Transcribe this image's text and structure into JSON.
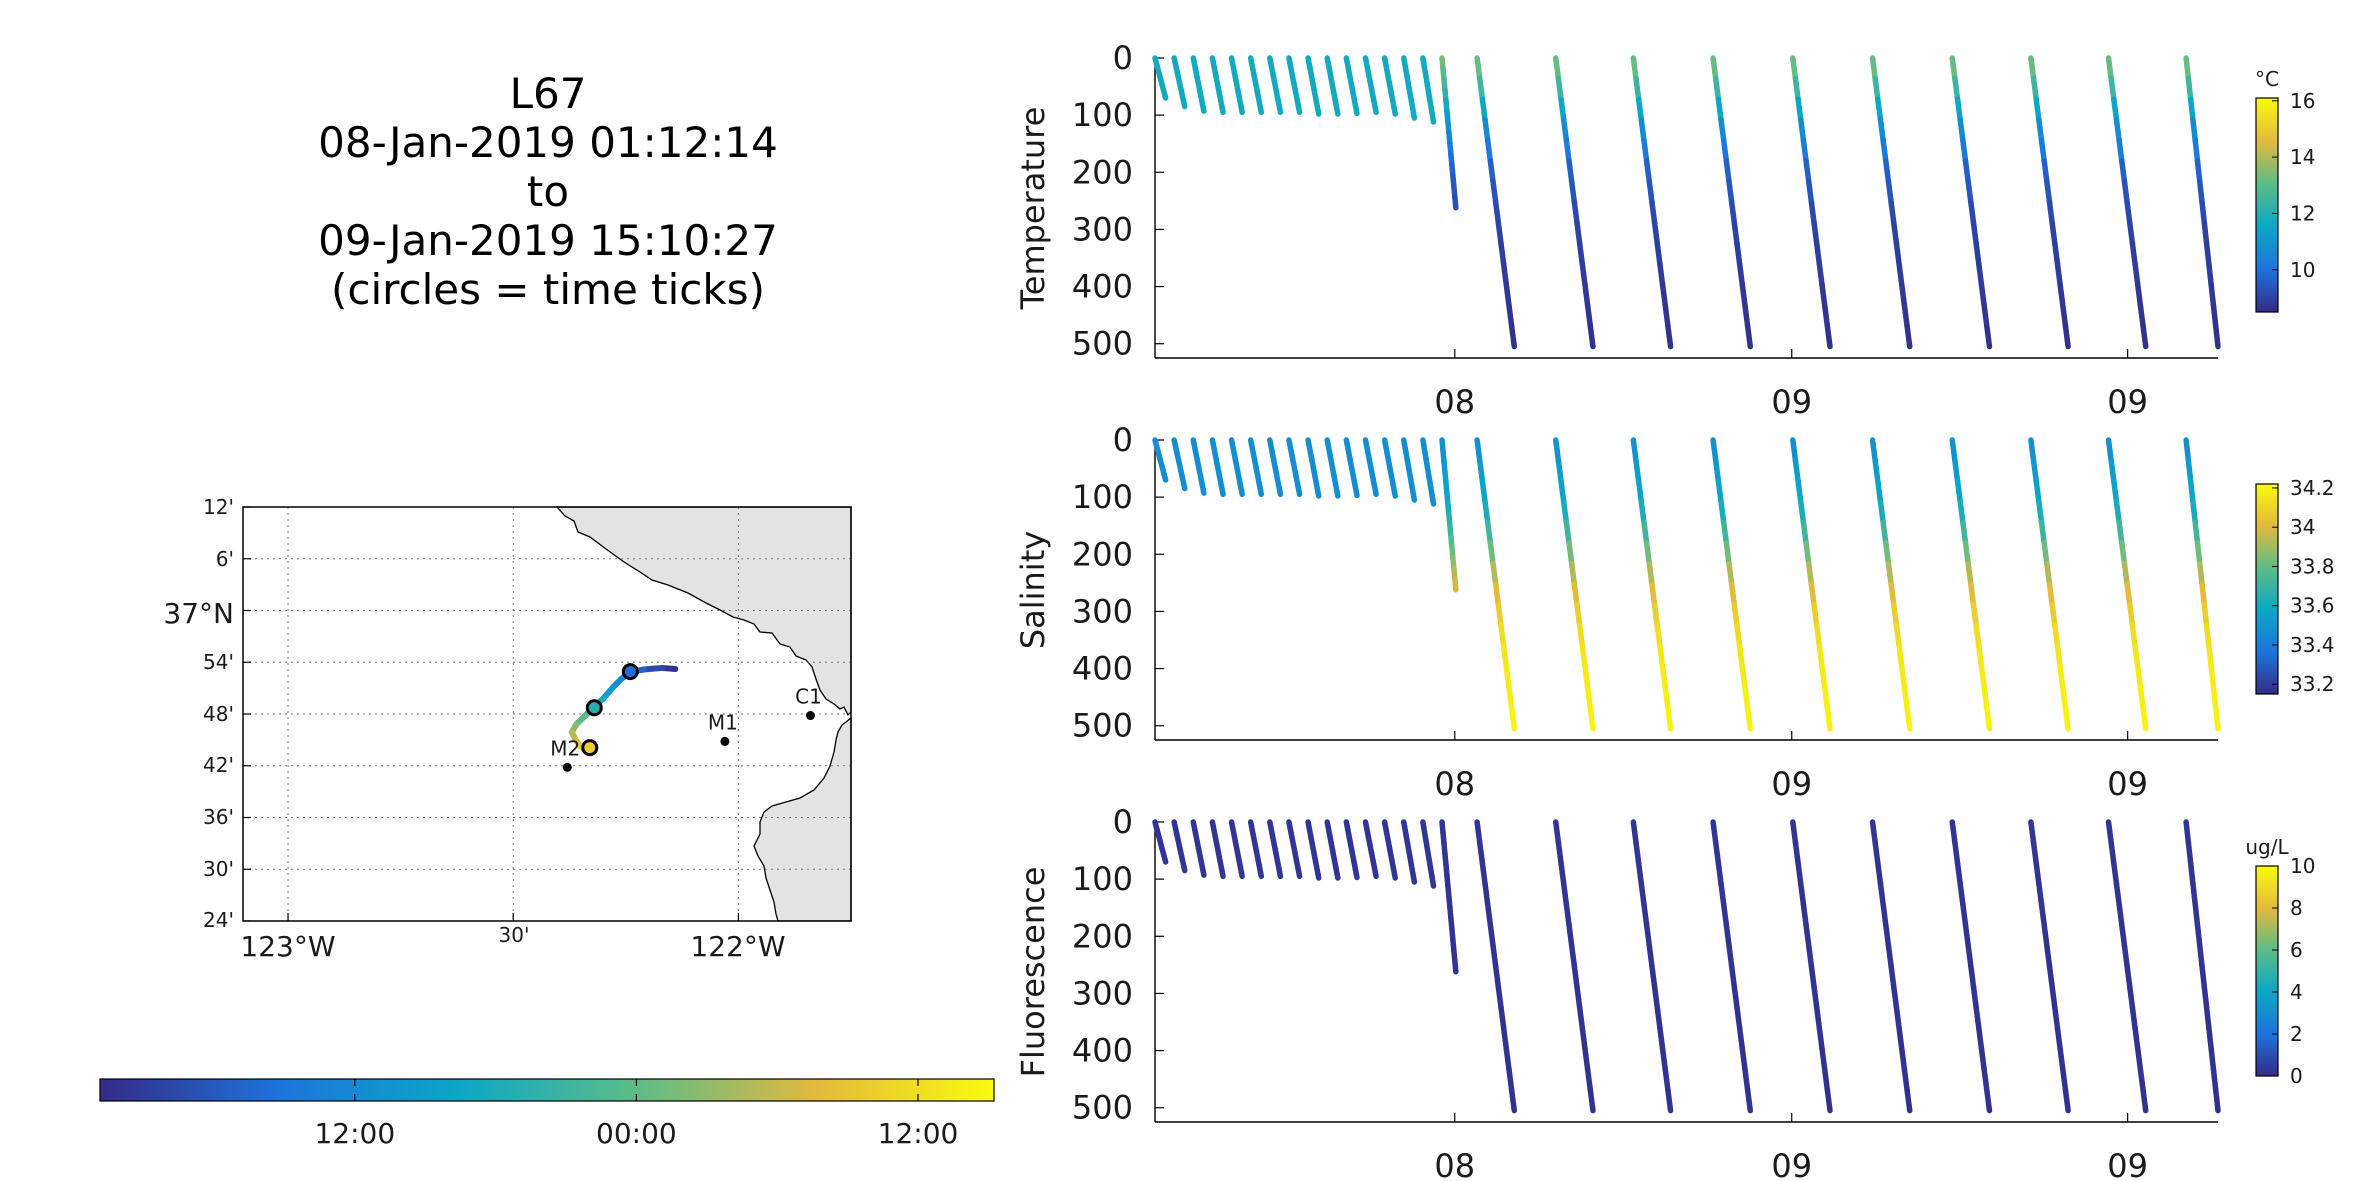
{
  "title": {
    "lines": [
      "L67",
      "08-Jan-2019 01:12:14",
      "to",
      "09-Jan-2019 15:10:27",
      "(circles = time ticks)"
    ]
  },
  "map": {
    "lat_labels": [
      "12'",
      "6'",
      "37°N",
      "54'",
      "48'",
      "42'",
      "36'",
      "30'",
      "24'"
    ],
    "lat_values": [
      37.2,
      37.1,
      37.0,
      36.9,
      36.8,
      36.7,
      36.6,
      36.5,
      36.4
    ],
    "lon_labels": [
      "123°W",
      "30'",
      "122°W"
    ],
    "lon_values": [
      -123.0,
      -122.5,
      -122.0
    ],
    "lon_range": [
      -123.1,
      -121.75
    ],
    "lat_range": [
      36.4,
      37.2
    ],
    "stations": [
      {
        "name": "C1",
        "lon": -121.84,
        "lat": 36.797
      },
      {
        "name": "M1",
        "lon": -122.03,
        "lat": 36.747
      },
      {
        "name": "M2",
        "lon": -122.38,
        "lat": 36.697
      }
    ],
    "track": [
      {
        "lon": -122.14,
        "lat": 36.887,
        "t": 0.0
      },
      {
        "lon": -122.17,
        "lat": 36.889,
        "t": 0.05
      },
      {
        "lon": -122.21,
        "lat": 36.886,
        "t": 0.12
      },
      {
        "lon": -122.24,
        "lat": 36.881,
        "t": 0.19
      },
      {
        "lon": -122.26,
        "lat": 36.868,
        "t": 0.26
      },
      {
        "lon": -122.28,
        "lat": 36.85,
        "t": 0.33
      },
      {
        "lon": -122.3,
        "lat": 36.83,
        "t": 0.4
      },
      {
        "lon": -122.32,
        "lat": 36.814,
        "t": 0.47
      },
      {
        "lon": -122.34,
        "lat": 36.797,
        "t": 0.55
      },
      {
        "lon": -122.36,
        "lat": 36.78,
        "t": 0.63
      },
      {
        "lon": -122.37,
        "lat": 36.765,
        "t": 0.7
      },
      {
        "lon": -122.36,
        "lat": 36.748,
        "t": 0.77
      },
      {
        "lon": -122.35,
        "lat": 36.737,
        "t": 0.84
      },
      {
        "lon": -122.34,
        "lat": 36.73,
        "t": 0.91
      },
      {
        "lon": -122.32,
        "lat": 36.728,
        "t": 1.0
      }
    ],
    "time_circles": [
      {
        "lon": -122.24,
        "lat": 36.882,
        "t": 0.185
      },
      {
        "lon": -122.32,
        "lat": 36.812,
        "t": 0.47
      },
      {
        "lon": -122.33,
        "lat": 36.735,
        "t": 0.86
      }
    ]
  },
  "time_colorbar": {
    "tick_labels": [
      "12:00",
      "00:00",
      "12:00"
    ],
    "tick_positions": [
      0.285,
      0.6,
      0.915
    ]
  },
  "chart_data": [
    {
      "type": "scatter",
      "ylabel": "Temperature",
      "y_reversed": true,
      "ylim": [
        525,
        0
      ],
      "yticks": [
        0,
        100,
        200,
        300,
        400,
        500
      ],
      "xtick_labels": [
        "08",
        "09",
        "09"
      ],
      "xtick_positions": [
        0.282,
        0.599,
        0.915
      ],
      "colorbar": {
        "unit": "°C",
        "range": [
          8.5,
          16.1
        ],
        "ticks": [
          10,
          12,
          14,
          16
        ]
      },
      "profile_colors": [
        {
          "depth": 0,
          "value": 13.5
        },
        {
          "depth": 60,
          "value": 12.4
        },
        {
          "depth": 110,
          "value": 11.0
        },
        {
          "depth": 200,
          "value": 9.6
        },
        {
          "depth": 300,
          "value": 9.0
        },
        {
          "depth": 500,
          "value": 8.6
        }
      ],
      "shallow_value": 11.7
    },
    {
      "type": "scatter",
      "ylabel": "Salinity",
      "y_reversed": true,
      "ylim": [
        525,
        0
      ],
      "yticks": [
        0,
        100,
        200,
        300,
        400,
        500
      ],
      "xtick_labels": [
        "08",
        "09",
        "09"
      ],
      "xtick_positions": [
        0.282,
        0.599,
        0.915
      ],
      "colorbar": {
        "unit": "",
        "range": [
          33.15,
          34.22
        ],
        "ticks": [
          33.2,
          33.4,
          33.6,
          33.8,
          34,
          34.2
        ]
      },
      "profile_colors": [
        {
          "depth": 0,
          "value": 33.47
        },
        {
          "depth": 120,
          "value": 33.6
        },
        {
          "depth": 190,
          "value": 33.8
        },
        {
          "depth": 260,
          "value": 34.0
        },
        {
          "depth": 360,
          "value": 34.15
        },
        {
          "depth": 500,
          "value": 34.2
        }
      ],
      "shallow_value": 33.47
    },
    {
      "type": "scatter",
      "ylabel": "Fluorescence",
      "y_reversed": true,
      "ylim": [
        525,
        0
      ],
      "yticks": [
        0,
        100,
        200,
        300,
        400,
        500
      ],
      "xtick_labels": [
        "08",
        "09",
        "09"
      ],
      "xtick_positions": [
        0.282,
        0.599,
        0.915
      ],
      "colorbar": {
        "unit": "ug/L",
        "range": [
          0,
          10
        ],
        "ticks": [
          0,
          2,
          4,
          6,
          8,
          10
        ]
      },
      "profile_colors": [
        {
          "depth": 0,
          "value": 0.3
        },
        {
          "depth": 500,
          "value": 0.2
        }
      ],
      "shallow_value": 0.3
    }
  ],
  "dives": {
    "shallow": [
      {
        "x0": 0.0,
        "x1": 0.01
      },
      {
        "x0": 0.018,
        "x1": 0.028
      },
      {
        "x0": 0.036,
        "x1": 0.046
      },
      {
        "x0": 0.054,
        "x1": 0.064
      },
      {
        "x0": 0.072,
        "x1": 0.082
      },
      {
        "x0": 0.09,
        "x1": 0.1
      },
      {
        "x0": 0.108,
        "x1": 0.118
      },
      {
        "x0": 0.126,
        "x1": 0.136
      },
      {
        "x0": 0.144,
        "x1": 0.154
      },
      {
        "x0": 0.162,
        "x1": 0.172
      },
      {
        "x0": 0.18,
        "x1": 0.19
      },
      {
        "x0": 0.198,
        "x1": 0.208
      },
      {
        "x0": 0.216,
        "x1": 0.226
      },
      {
        "x0": 0.234,
        "x1": 0.244
      },
      {
        "x0": 0.252,
        "x1": 0.262
      }
    ],
    "shallow_end_depth": [
      70,
      85,
      93,
      95,
      95,
      95,
      95,
      95,
      98,
      98,
      97,
      95,
      98,
      105,
      112
    ],
    "mid": {
      "x0": 0.27,
      "x1": 0.283,
      "end_depth": 262
    },
    "deep": [
      {
        "x0": 0.303,
        "x1": 0.338
      },
      {
        "x0": 0.377,
        "x1": 0.412
      },
      {
        "x0": 0.45,
        "x1": 0.485
      },
      {
        "x0": 0.525,
        "x1": 0.56
      },
      {
        "x0": 0.6,
        "x1": 0.635
      },
      {
        "x0": 0.675,
        "x1": 0.71
      },
      {
        "x0": 0.75,
        "x1": 0.785
      },
      {
        "x0": 0.824,
        "x1": 0.859
      },
      {
        "x0": 0.897,
        "x1": 0.932
      },
      {
        "x0": 0.97,
        "x1": 1.0
      }
    ],
    "deep_end_depth": 505
  }
}
